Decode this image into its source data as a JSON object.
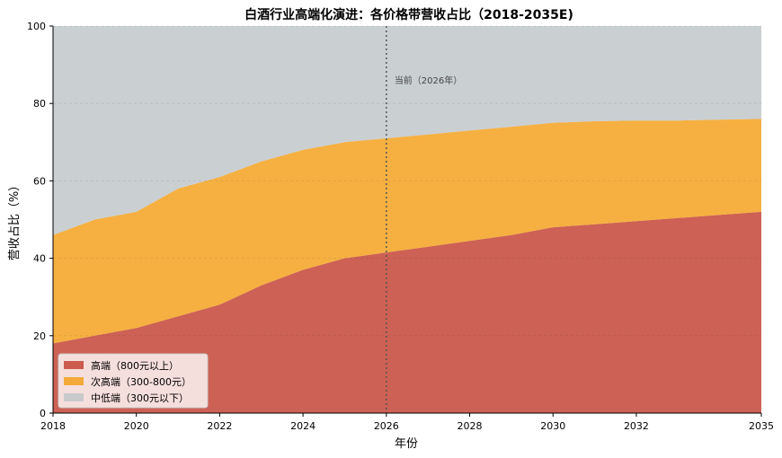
{
  "chart_data": {
    "type": "area",
    "stacked": true,
    "title": "白酒行业高端化演进：各价格带营收占比（2018-2035E)",
    "xlabel": "年份",
    "ylabel": "营收占比（%）",
    "xlim": [
      2018,
      2035
    ],
    "ylim": [
      0,
      100
    ],
    "x_ticks": [
      "2018",
      "2020",
      "2022",
      "2024",
      "2026",
      "2028",
      "2030",
      "2032",
      "2035"
    ],
    "y_ticks": [
      "0",
      "20",
      "40",
      "60",
      "80",
      "100"
    ],
    "x": [
      2018,
      2019,
      2020,
      2021,
      2022,
      2023,
      2024,
      2025,
      2026,
      2027,
      2028,
      2029,
      2030,
      2031,
      2032,
      2033,
      2034,
      2035
    ],
    "series": [
      {
        "name": "高端（800元以上）",
        "color": "#c0392b",
        "values": [
          18,
          20,
          22,
          25,
          28,
          33,
          37,
          40,
          41.5,
          43,
          44.5,
          46,
          48,
          48.8,
          49.6,
          50.4,
          51.2,
          52
        ]
      },
      {
        "name": "次高端（300-800元）",
        "color": "#f39c12",
        "values": [
          28,
          30,
          30,
          33,
          33,
          32,
          31,
          30,
          29.5,
          29,
          28.5,
          28,
          27,
          26.6,
          26,
          25.2,
          24.6,
          24
        ]
      },
      {
        "name": "中低端（300元以下）",
        "color": "#bdc3c7",
        "values": [
          54,
          50,
          48,
          42,
          39,
          35,
          32,
          30,
          29,
          28,
          27,
          26,
          25,
          24.6,
          24.4,
          24.4,
          24.2,
          24
        ]
      }
    ],
    "vline": {
      "x": 2026,
      "label": "当前（2026年）"
    },
    "legend_location": "lower-left",
    "grid": true
  }
}
